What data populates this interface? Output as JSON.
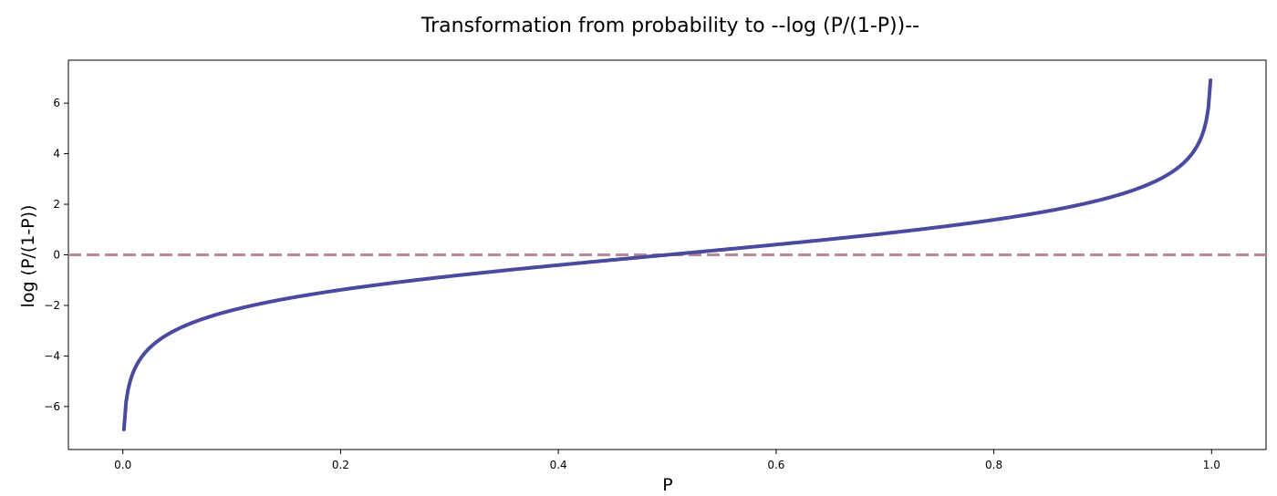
{
  "chart_data": {
    "type": "line",
    "title": "Transformation from probability to --log (P/(1-P))--",
    "xlabel": "P",
    "ylabel": "log (P/(1-P))",
    "xlim": [
      -0.05,
      1.05
    ],
    "ylim": [
      -7.7,
      7.7
    ],
    "xticks": [
      0.0,
      0.2,
      0.4,
      0.6,
      0.8,
      1.0
    ],
    "xtick_labels": [
      "0.0",
      "0.2",
      "0.4",
      "0.6",
      "0.8",
      "1.0"
    ],
    "yticks": [
      -6,
      -4,
      -2,
      0,
      2,
      4,
      6
    ],
    "ytick_labels": [
      "−6",
      "−4",
      "−2",
      "0",
      "2",
      "4",
      "6"
    ],
    "grid": false,
    "series": [
      {
        "function": "log(P/(1-P))",
        "color": "#4a4aa0",
        "style": "solid",
        "x": [
          0.001,
          0.002,
          0.005,
          0.01,
          0.02,
          0.03,
          0.05,
          0.07,
          0.1,
          0.15,
          0.2,
          0.25,
          0.3,
          0.35,
          0.4,
          0.45,
          0.5,
          0.55,
          0.6,
          0.65,
          0.7,
          0.75,
          0.8,
          0.85,
          0.9,
          0.93,
          0.95,
          0.97,
          0.98,
          0.99,
          0.995,
          0.998,
          0.999
        ],
        "y": [
          -6.907,
          -6.213,
          -5.293,
          -4.595,
          -3.892,
          -3.476,
          -2.944,
          -2.586,
          -2.197,
          -1.735,
          -1.386,
          -1.099,
          -0.847,
          -0.619,
          -0.405,
          -0.2,
          0.0,
          0.2,
          0.405,
          0.619,
          0.847,
          1.099,
          1.386,
          1.735,
          2.197,
          2.586,
          2.944,
          3.476,
          3.892,
          4.595,
          5.293,
          6.213,
          6.907
        ]
      }
    ],
    "reference_lines": [
      {
        "orientation": "horizontal",
        "y": 0,
        "style": "dashed",
        "color": "#b88a98"
      }
    ]
  }
}
